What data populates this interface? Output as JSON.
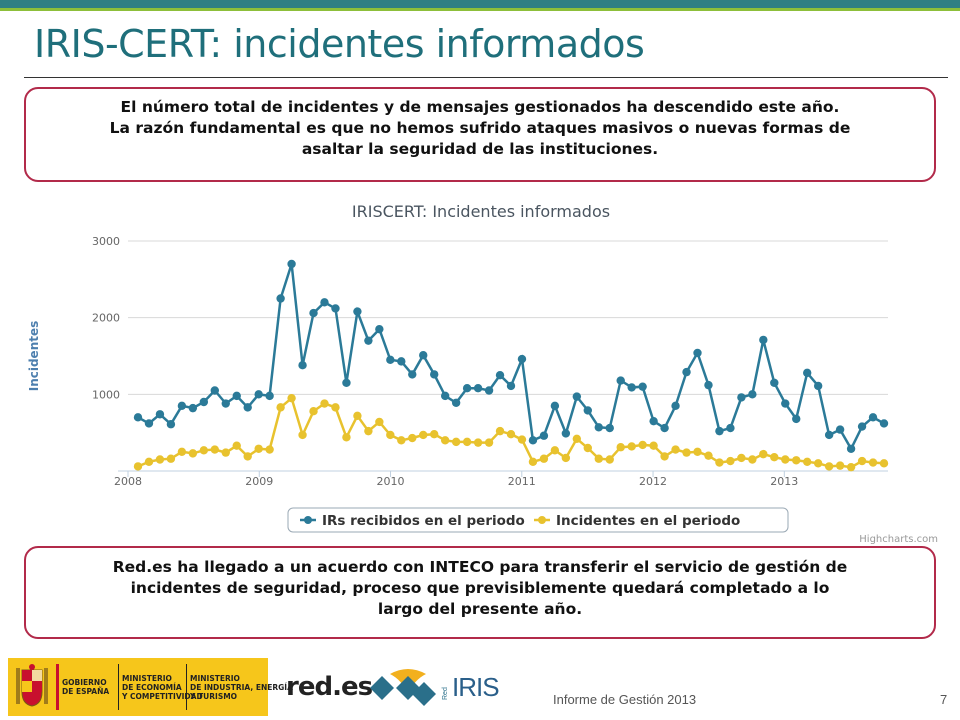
{
  "slide": {
    "title": "IRIS-CERT: incidentes informados",
    "box_top": [
      "El número total de incidentes y de mensajes gestionados ha descendido este año.",
      "La razón fundamental es que no hemos sufrido ataques masivos o nuevas formas de",
      "asaltar la seguridad de las instituciones."
    ],
    "box_bottom": [
      "Red.es ha llegado a un acuerdo con INTECO para transferir el servicio de gestión de",
      "incidentes de seguridad, proceso que previsiblemente quedará completado a lo",
      "largo del presente año."
    ]
  },
  "footer": {
    "ministry1": [
      "GOBIERNO",
      "DE ESPAÑA"
    ],
    "ministry2": [
      "MINISTERIO",
      "DE ECONOMÍA",
      "Y COMPETITIVIDAD"
    ],
    "ministry3": [
      "MINISTERIO",
      "DE INDUSTRIA, ENERGÍA",
      "Y TURISMO"
    ],
    "reds_logo": "red.es",
    "rediris_small": "Red",
    "rediris_logo": "IRIS",
    "report": "Informe de Gestión 2013",
    "page": "7"
  },
  "chart_data": {
    "type": "line",
    "title": "IRISCERT: Incidentes informados",
    "ylabel": "Incidentes",
    "xlabel": "",
    "ylim": [
      0,
      3000
    ],
    "yticks": [
      1000,
      2000,
      3000
    ],
    "xlim": [
      2008,
      2013.79
    ],
    "xticks": [
      "2008",
      "2009",
      "2010",
      "2011",
      "2012",
      "2013"
    ],
    "credit": "Highcharts.com",
    "legend_position": "bottom",
    "series": [
      {
        "name": "IRs recibidos en el periodo",
        "color": "#2b7a98",
        "values": [
          700,
          620,
          740,
          610,
          850,
          820,
          900,
          1050,
          880,
          980,
          830,
          1000,
          980,
          2250,
          2700,
          1380,
          2060,
          2200,
          2120,
          1150,
          2080,
          1700,
          1850,
          1450,
          1430,
          1260,
          1510,
          1260,
          980,
          890,
          1080,
          1080,
          1050,
          1250,
          1110,
          1460,
          400,
          460,
          850,
          490,
          970,
          790,
          570,
          560,
          1180,
          1090,
          1100,
          650,
          560,
          850,
          1290,
          1540,
          1120,
          520,
          560,
          960,
          1000,
          1710,
          1150,
          880,
          680,
          1280,
          1110,
          470,
          540,
          290,
          580,
          700,
          620
        ]
      },
      {
        "name": "Incidentes en el periodo",
        "color": "#e8c22e",
        "values": [
          60,
          120,
          150,
          160,
          250,
          230,
          270,
          280,
          240,
          330,
          190,
          290,
          280,
          830,
          950,
          470,
          780,
          880,
          830,
          440,
          720,
          520,
          640,
          470,
          400,
          430,
          470,
          480,
          400,
          380,
          380,
          370,
          370,
          520,
          480,
          410,
          120,
          160,
          270,
          170,
          420,
          300,
          160,
          150,
          310,
          320,
          340,
          330,
          190,
          280,
          240,
          250,
          200,
          110,
          130,
          170,
          150,
          220,
          180,
          150,
          140,
          120,
          100,
          60,
          70,
          50,
          130,
          110,
          100
        ]
      }
    ]
  }
}
